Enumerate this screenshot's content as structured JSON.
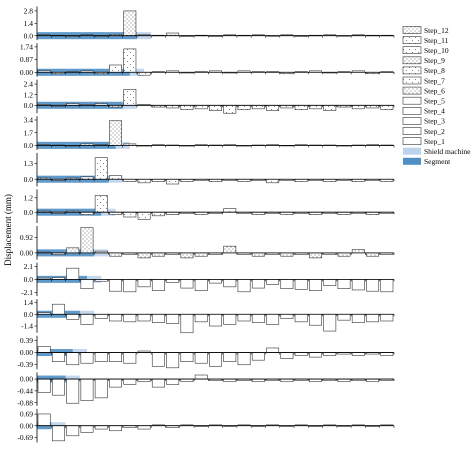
{
  "chart_data": {
    "type": "bar",
    "ylabel": "Displacement (mm)",
    "x_positions": 25,
    "grid": false,
    "legend_position": "right",
    "colors": {
      "segment": "#4f8fc4",
      "shield_machine": "#bcd3ec",
      "bar_edge": "#333333",
      "axis": "#000000"
    },
    "legend": [
      {
        "label": "Step_12",
        "swatch": "hatch-dots"
      },
      {
        "label": "Step_11",
        "swatch": "hatch-dots-sparse"
      },
      {
        "label": "Step_10",
        "swatch": "hatch-dots-sparse"
      },
      {
        "label": "Step_9",
        "swatch": "hatch-dots"
      },
      {
        "label": "Step_8",
        "swatch": "hatch-dots-sparse"
      },
      {
        "label": "Step_7",
        "swatch": "hatch-dots-sparse"
      },
      {
        "label": "Step_6",
        "swatch": "hatch-dots"
      },
      {
        "label": "Step_5",
        "swatch": "plain"
      },
      {
        "label": "Step_4",
        "swatch": "plain"
      },
      {
        "label": "Step_3",
        "swatch": "plain"
      },
      {
        "label": "Step_2",
        "swatch": "plain"
      },
      {
        "label": "Step_1",
        "swatch": "plain"
      },
      {
        "label": "Shield machine",
        "swatch": "shield"
      },
      {
        "label": "Segment",
        "swatch": "segment"
      }
    ],
    "panels": [
      {
        "name": "Step_12",
        "pattern": "dots",
        "yticks": [
          "2.8",
          "1.4",
          "0.0"
        ],
        "ylim": [
          -0.5,
          3.3
        ],
        "segment_end": 7.0,
        "shield_end": 8.0,
        "values": [
          0.1,
          0.05,
          -0.1,
          0.1,
          -0.1,
          0.15,
          2.8,
          0.1,
          0.05,
          0.3,
          -0.1,
          0.05,
          -0.1,
          0.1,
          0.05,
          0.1,
          -0.05,
          0.1,
          -0.1,
          0.05,
          0.1,
          -0.05,
          0.1,
          0.05,
          0.05
        ]
      },
      {
        "name": "Step_11",
        "pattern": "dots-sparse",
        "yticks": [
          "1.74",
          "0.87",
          "0.00"
        ],
        "ylim": [
          -0.3,
          2.0
        ],
        "segment_end": 6.5,
        "shield_end": 7.5,
        "values": [
          0.1,
          -0.1,
          0.05,
          0.1,
          -0.1,
          0.5,
          1.6,
          -0.2,
          0.05,
          0.1,
          -0.05,
          0.05,
          0.1,
          -0.05,
          0.1,
          0.05,
          0.05,
          -0.1,
          0.05,
          0.1,
          -0.05,
          0.05,
          0.1,
          -0.1,
          0.05
        ]
      },
      {
        "name": "Step_10",
        "pattern": "dots-sparse",
        "yticks": [
          "2.4",
          "1.2",
          "0.0"
        ],
        "ylim": [
          -0.9,
          2.9
        ],
        "segment_end": 6.0,
        "shield_end": 7.0,
        "values": [
          0.1,
          -0.1,
          0.2,
          0.1,
          0.2,
          -0.2,
          1.8,
          0.1,
          -0.2,
          -0.3,
          -0.5,
          -0.4,
          -0.6,
          -0.9,
          -0.5,
          -0.4,
          -0.6,
          -0.3,
          -0.5,
          -0.4,
          -0.6,
          -0.2,
          -0.4,
          -0.3,
          -0.5
        ]
      },
      {
        "name": "Step_9",
        "pattern": "dots",
        "yticks": [
          "3.4",
          "1.7",
          "0.0"
        ],
        "ylim": [
          -0.6,
          3.9
        ],
        "segment_end": 5.5,
        "shield_end": 6.5,
        "values": [
          0.1,
          0.05,
          -0.1,
          0.2,
          0.1,
          3.3,
          0.2,
          -0.1,
          0.1,
          0.05,
          -0.1,
          0.1,
          0.05,
          0.1,
          -0.1,
          0.05,
          0.1,
          -0.05,
          0.1,
          0.05,
          0.05,
          -0.1,
          0.05,
          0.1,
          0.05
        ]
      },
      {
        "name": "Step_8",
        "pattern": "dots-sparse",
        "yticks": [
          "1.3",
          "0.0"
        ],
        "ylim": [
          -0.6,
          2.2
        ],
        "segment_end": 5.0,
        "shield_end": 6.0,
        "values": [
          0.1,
          -0.1,
          0.1,
          0.2,
          1.8,
          0.3,
          -0.2,
          -0.3,
          -0.2,
          -0.4,
          -0.2,
          -0.1,
          -0.2,
          -0.1,
          -0.2,
          -0.1,
          -0.3,
          -0.1,
          -0.2,
          -0.1,
          -0.2,
          -0.1,
          -0.2,
          -0.1,
          -0.2
        ]
      },
      {
        "name": "Step_7",
        "pattern": "dots-sparse",
        "yticks": [
          "1.2",
          "0.0"
        ],
        "ylim": [
          -0.9,
          1.9
        ],
        "segment_end": 4.5,
        "shield_end": 5.5,
        "values": [
          0.1,
          -0.1,
          0.1,
          -0.2,
          1.4,
          -0.2,
          -0.4,
          -0.6,
          -0.3,
          -0.2,
          -0.1,
          -0.2,
          -0.1,
          0.3,
          -0.1,
          -0.2,
          -0.1,
          -0.2,
          -0.1,
          -0.2,
          -0.1,
          -0.2,
          -0.1,
          -0.2,
          -0.1
        ]
      },
      {
        "name": "Step_6",
        "pattern": "dots",
        "yticks": [
          "0.92",
          "0.00"
        ],
        "ylim": [
          -0.4,
          1.6
        ],
        "segment_end": 4.0,
        "shield_end": 5.0,
        "values": [
          0.05,
          -0.1,
          0.3,
          1.5,
          0.1,
          -0.2,
          -0.1,
          -0.3,
          -0.2,
          -0.1,
          -0.3,
          -0.2,
          -0.1,
          0.4,
          -0.1,
          -0.2,
          -0.1,
          -0.2,
          -0.1,
          -0.3,
          -0.1,
          -0.2,
          0.2,
          -0.2,
          -0.1
        ]
      },
      {
        "name": "Step_5",
        "pattern": "plain",
        "yticks": [
          "2.1",
          "0.0",
          "-2.1"
        ],
        "ylim": [
          -2.7,
          2.7
        ],
        "segment_end": 3.5,
        "shield_end": 4.5,
        "values": [
          0.2,
          0.3,
          1.8,
          -1.5,
          -0.3,
          -1.9,
          -2.0,
          -1.2,
          -1.8,
          -0.5,
          -1.4,
          -1.8,
          -0.6,
          -1.2,
          -2.0,
          -1.4,
          -0.8,
          -1.5,
          -1.6,
          -1.8,
          -1.0,
          -1.5,
          -1.7,
          -1.9,
          -2.0
        ]
      },
      {
        "name": "Step_4",
        "pattern": "plain",
        "yticks": [
          "1.4",
          "0.0",
          "-1.4"
        ],
        "ylim": [
          -2.2,
          1.8
        ],
        "segment_end": 3.0,
        "shield_end": 4.0,
        "values": [
          0.2,
          1.2,
          -0.6,
          -1.2,
          -0.5,
          -0.8,
          -0.9,
          -0.8,
          -1.0,
          -1.1,
          -2.2,
          -0.9,
          -1.4,
          -1.2,
          -0.8,
          -1.0,
          -1.2,
          -0.5,
          -0.9,
          -1.3,
          -2.0,
          -0.7,
          -1.0,
          -0.9,
          -0.8
        ]
      },
      {
        "name": "Step_3",
        "pattern": "plain",
        "yticks": [
          "0.39",
          "0.00",
          "-0.39"
        ],
        "ylim": [
          -0.55,
          0.55
        ],
        "segment_end": 2.5,
        "shield_end": 3.5,
        "values": [
          0.2,
          -0.3,
          -0.4,
          -0.35,
          -0.3,
          -0.3,
          -0.35,
          0.05,
          -0.45,
          -0.5,
          -0.3,
          -0.35,
          -0.45,
          -0.3,
          -0.4,
          -0.25,
          0.15,
          -0.2,
          -0.1,
          -0.15,
          -0.1,
          -0.05,
          -0.1,
          -0.05,
          -0.1
        ]
      },
      {
        "name": "Step_2",
        "pattern": "plain",
        "yticks": [
          "0.00",
          "-0.44",
          "-0.88"
        ],
        "ylim": [
          -1.0,
          0.25
        ],
        "segment_end": 2.0,
        "shield_end": 3.0,
        "values": [
          -0.5,
          -0.6,
          -0.9,
          -0.8,
          -0.7,
          -0.3,
          -0.2,
          -0.1,
          -0.3,
          -0.2,
          -0.1,
          0.15,
          -0.05,
          -0.1,
          -0.05,
          -0.1,
          -0.05,
          -0.1,
          -0.05,
          -0.1,
          -0.05,
          -0.1,
          -0.05,
          -0.1,
          -0.05
        ]
      },
      {
        "name": "Step_1",
        "pattern": "plain",
        "yticks": [
          "0.69",
          "0.00",
          "-0.69"
        ],
        "ylim": [
          -1.0,
          1.0
        ],
        "segment_end": 1.0,
        "shield_end": 2.0,
        "values": [
          0.7,
          -0.9,
          -0.6,
          -0.4,
          -0.2,
          -0.3,
          -0.1,
          -0.2,
          0.05,
          -0.1,
          0.05,
          -0.05,
          0.05,
          -0.05,
          0.05,
          -0.05,
          0.05,
          -0.05,
          0.05,
          -0.05,
          0.05,
          -0.05,
          0.05,
          -0.05,
          0.05
        ]
      }
    ]
  }
}
